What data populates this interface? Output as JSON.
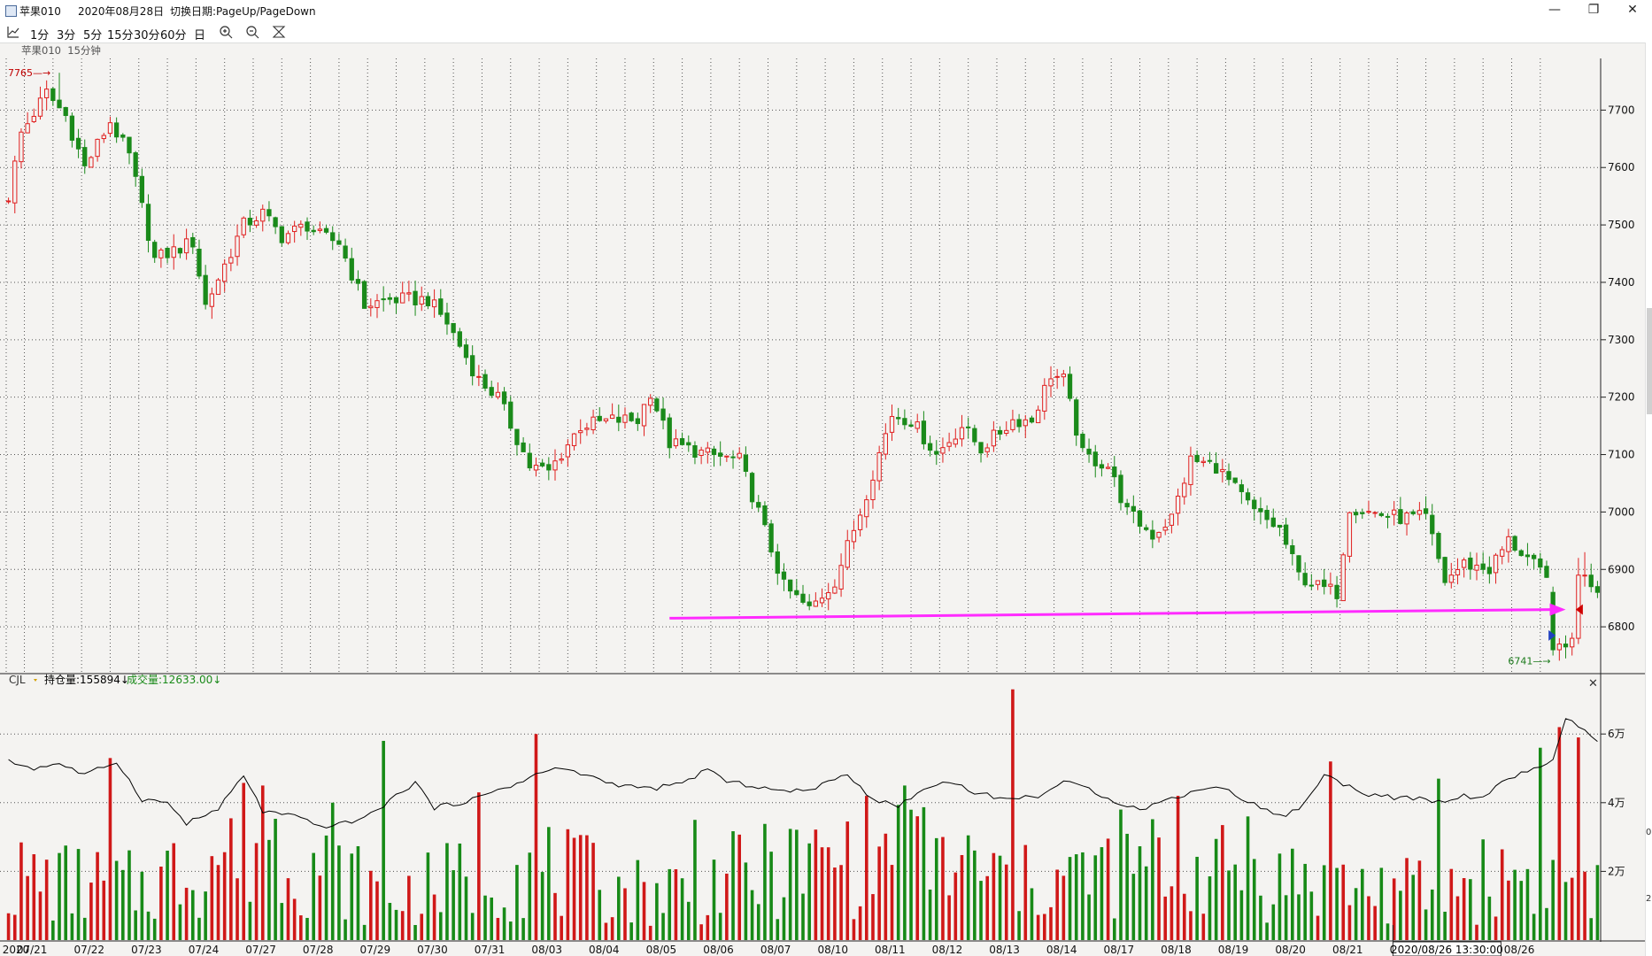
{
  "window": {
    "title": "苹果010",
    "date": "2020年08月28日",
    "hint": "切换日期:PageUp/PageDown",
    "controls": [
      "—",
      "❐",
      "✕"
    ]
  },
  "toolbar": {
    "periods": [
      "1分",
      "3分",
      "5分",
      "15分",
      "30分",
      "60分",
      "日"
    ],
    "icons": [
      "line-chart-icon",
      "zoom-in-icon",
      "zoom-out-icon",
      "auto-scale-icon"
    ]
  },
  "subtitle": {
    "symbol": "苹果010",
    "period": "15分钟"
  },
  "indicator": {
    "name": "CJL",
    "oi_label": "持仓量:155894↓",
    "vol_label": "成交量:12633.00↓",
    "close": "✕"
  },
  "edge_marks": [
    "0",
    "2"
  ],
  "chart_data": [
    {
      "type": "candlestick",
      "title": "",
      "yaxis_ticks": [
        6800,
        6900,
        7000,
        7100,
        7200,
        7300,
        7400,
        7500,
        7600,
        7700
      ],
      "ylim": [
        6720,
        7790
      ],
      "x_dates": [
        "07/21",
        "07/22",
        "07/23",
        "07/24",
        "07/27",
        "07/28",
        "07/29",
        "07/30",
        "07/31",
        "08/03",
        "08/04",
        "08/05",
        "08/06",
        "08/07",
        "08/10",
        "08/11",
        "08/12",
        "08/13",
        "08/14",
        "08/17",
        "08/18",
        "08/19",
        "08/20",
        "08/21",
        "08/24",
        "08/25",
        "08/26"
      ],
      "x_axis_start_label": "2020",
      "cursor_label": "2020/08/26 13:30:00",
      "bars_per_day": 6,
      "anchors": [
        [
          0,
          7550
        ],
        [
          2,
          7660
        ],
        [
          6,
          7730
        ],
        [
          9,
          7690
        ],
        [
          12,
          7600
        ],
        [
          16,
          7680
        ],
        [
          19,
          7620
        ],
        [
          23,
          7440
        ],
        [
          29,
          7470
        ],
        [
          31,
          7360
        ],
        [
          37,
          7500
        ],
        [
          40,
          7520
        ],
        [
          43,
          7480
        ],
        [
          47,
          7500
        ],
        [
          49,
          7480
        ],
        [
          52,
          7470
        ],
        [
          56,
          7360
        ],
        [
          60,
          7370
        ],
        [
          66,
          7370
        ],
        [
          69,
          7330
        ],
        [
          74,
          7230
        ],
        [
          77,
          7200
        ],
        [
          82,
          7080
        ],
        [
          85,
          7070
        ],
        [
          90,
          7150
        ],
        [
          95,
          7160
        ],
        [
          99,
          7160
        ],
        [
          101,
          7210
        ],
        [
          104,
          7120
        ],
        [
          110,
          7100
        ],
        [
          115,
          7090
        ],
        [
          118,
          7000
        ],
        [
          122,
          6870
        ],
        [
          126,
          6830
        ],
        [
          130,
          6880
        ],
        [
          134,
          7000
        ],
        [
          139,
          7170
        ],
        [
          142,
          7160
        ],
        [
          146,
          7100
        ],
        [
          150,
          7150
        ],
        [
          153,
          7110
        ],
        [
          158,
          7160
        ],
        [
          161,
          7160
        ],
        [
          164,
          7240
        ],
        [
          166,
          7230
        ],
        [
          169,
          7100
        ],
        [
          173,
          7080
        ],
        [
          176,
          7000
        ],
        [
          180,
          6960
        ],
        [
          183,
          6990
        ],
        [
          186,
          7090
        ],
        [
          190,
          7080
        ],
        [
          193,
          7040
        ],
        [
          196,
          7000
        ],
        [
          200,
          6970
        ],
        [
          203,
          6890
        ],
        [
          206,
          6870
        ],
        [
          209,
          6860
        ],
        [
          211,
          7010
        ],
        [
          214,
          7000
        ],
        [
          219,
          6990
        ],
        [
          223,
          6990
        ],
        [
          226,
          6880
        ],
        [
          229,
          6910
        ],
        [
          233,
          6900
        ],
        [
          236,
          6950
        ],
        [
          239,
          6920
        ],
        [
          242,
          6880
        ]
      ],
      "special_bars": [
        {
          "index": 243,
          "open": 6860,
          "close": 6760,
          "high": 6870,
          "low": 6750
        },
        {
          "index": 244,
          "open": 6760,
          "close": 6770,
          "high": 6780,
          "low": 6741
        },
        {
          "index": 245,
          "open": 6770,
          "close": 6765,
          "high": 6785,
          "low": 6745
        },
        {
          "index": 246,
          "open": 6765,
          "close": 6780,
          "high": 6790,
          "low": 6750
        },
        {
          "index": 247,
          "open": 6780,
          "close": 6890,
          "high": 6920,
          "low": 6770
        },
        {
          "index": 248,
          "open": 6890,
          "close": 6890,
          "high": 6930,
          "low": 6870
        },
        {
          "index": 249,
          "open": 6890,
          "close": 6870,
          "high": 6910,
          "low": 6860
        },
        {
          "index": 250,
          "open": 6870,
          "close": 6860,
          "high": 6880,
          "low": 6850
        }
      ],
      "bars_drawn": 251,
      "colors": {
        "up": "#e02020",
        "down": "#1a8a1a",
        "background": "#f4f3f1"
      },
      "annotations": [
        {
          "text": "7765",
          "bar_index": 8,
          "value": 7765,
          "side": "left",
          "color": "#c00000"
        },
        {
          "text": "6741",
          "bar_index": 244,
          "value": 6741,
          "side": "left",
          "color": "#1a7a1a"
        }
      ],
      "trend_arrow": {
        "from": [
          104,
          6815
        ],
        "to": [
          245,
          6830
        ],
        "color": "#ff2bff"
      },
      "markers": [
        {
          "bar_index": 243,
          "value": 6785,
          "shape": "right-triangle",
          "color": "#2040c0"
        },
        {
          "bar_index": 247,
          "value": 6830,
          "shape": "left-triangle",
          "color": "#d00000"
        }
      ],
      "grid": true
    },
    {
      "type": "bar+line",
      "title": "",
      "yaxis_ticks_labels": [
        "2万",
        "4万",
        "6万"
      ],
      "yaxis_ticks": [
        20000,
        40000,
        60000
      ],
      "ylim": [
        0,
        75000
      ],
      "volume_anchors": [
        [
          0,
          18000
        ],
        [
          20,
          15000
        ],
        [
          40,
          30000
        ],
        [
          60,
          12000
        ],
        [
          80,
          22000
        ],
        [
          100,
          14000
        ],
        [
          120,
          20000
        ],
        [
          140,
          26000
        ],
        [
          160,
          16000
        ],
        [
          180,
          22000
        ],
        [
          200,
          18000
        ],
        [
          220,
          14000
        ],
        [
          240,
          20000
        ],
        [
          250,
          13000
        ]
      ],
      "volume_spikes": [
        [
          16,
          53000
        ],
        [
          40,
          45000
        ],
        [
          51,
          40000
        ],
        [
          59,
          58000
        ],
        [
          74,
          43000
        ],
        [
          83,
          60000
        ],
        [
          108,
          35000
        ],
        [
          141,
          45000
        ],
        [
          158,
          73000
        ],
        [
          175,
          38000
        ],
        [
          184,
          42000
        ],
        [
          195,
          36000
        ],
        [
          208,
          52000
        ],
        [
          225,
          47000
        ],
        [
          241,
          56000
        ],
        [
          244,
          62000
        ],
        [
          247,
          59000
        ]
      ],
      "open_interest": [
        [
          0,
          52000
        ],
        [
          4,
          50000
        ],
        [
          8,
          51500
        ],
        [
          12,
          48000
        ],
        [
          17,
          52000
        ],
        [
          21,
          41000
        ],
        [
          25,
          40000
        ],
        [
          28,
          34000
        ],
        [
          33,
          38000
        ],
        [
          37,
          48000
        ],
        [
          40,
          37500
        ],
        [
          45,
          36000
        ],
        [
          49,
          33000
        ],
        [
          53,
          34000
        ],
        [
          57,
          36500
        ],
        [
          61,
          42000
        ],
        [
          64,
          46000
        ],
        [
          67,
          38500
        ],
        [
          71,
          40000
        ],
        [
          75,
          42000
        ],
        [
          77,
          44000
        ],
        [
          81,
          46000
        ],
        [
          83,
          48500
        ],
        [
          87,
          50000
        ],
        [
          91,
          48000
        ],
        [
          95,
          45500
        ],
        [
          101,
          44000
        ],
        [
          106,
          45500
        ],
        [
          110,
          50000
        ],
        [
          113,
          46000
        ],
        [
          117,
          45000
        ],
        [
          123,
          43000
        ],
        [
          128,
          45000
        ],
        [
          132,
          48500
        ],
        [
          136,
          41000
        ],
        [
          140,
          39000
        ],
        [
          143,
          43000
        ],
        [
          148,
          46500
        ],
        [
          152,
          43000
        ],
        [
          157,
          41000
        ],
        [
          162,
          42000
        ],
        [
          166,
          46000
        ],
        [
          170,
          44000
        ],
        [
          174,
          40500
        ],
        [
          178,
          38000
        ],
        [
          181,
          40000
        ],
        [
          186,
          43000
        ],
        [
          190,
          45000
        ],
        [
          195,
          40500
        ],
        [
          200,
          36000
        ],
        [
          203,
          38000
        ],
        [
          207,
          48000
        ],
        [
          210,
          45500
        ],
        [
          214,
          42500
        ],
        [
          218,
          41500
        ],
        [
          222,
          41000
        ],
        [
          226,
          40000
        ],
        [
          229,
          42000
        ],
        [
          232,
          41500
        ],
        [
          236,
          47000
        ],
        [
          240,
          50000
        ],
        [
          243,
          52000
        ],
        [
          245,
          64000
        ],
        [
          247,
          62500
        ],
        [
          249,
          59000
        ],
        [
          250,
          58000
        ]
      ],
      "colors": {
        "up": "#d01818",
        "down": "#178a17",
        "line": "#000000"
      },
      "grid": true
    }
  ]
}
